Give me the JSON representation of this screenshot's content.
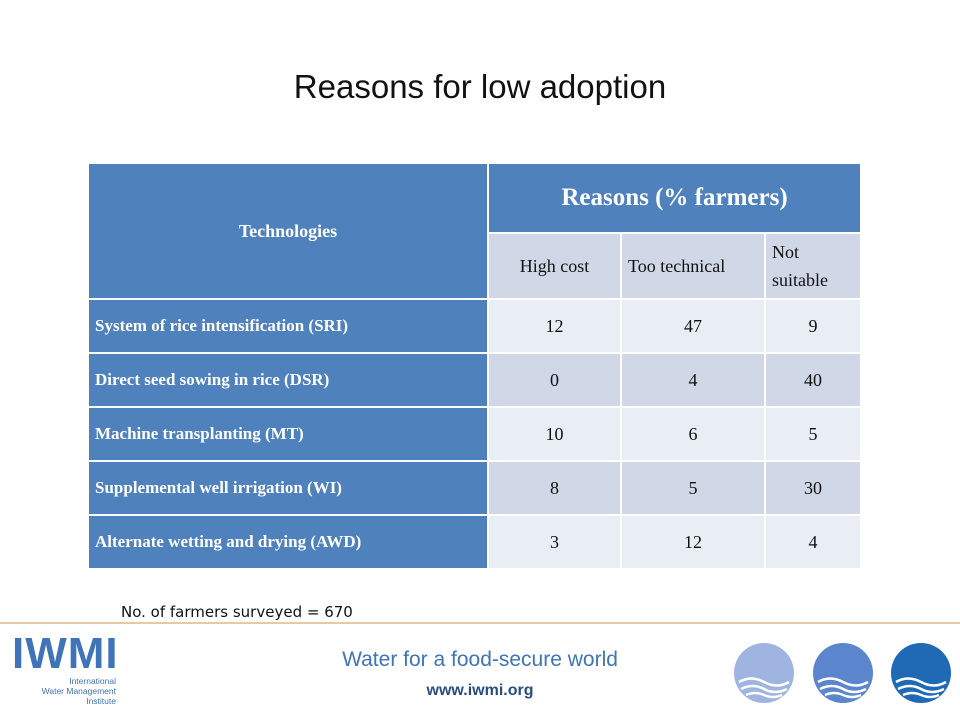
{
  "slide": {
    "title": "Reasons for low adoption"
  },
  "table": {
    "header_technologies": "Technologies",
    "header_reasons": "Reasons (% farmers)",
    "subheaders": [
      "High cost",
      "Too technical",
      "Not suitable"
    ],
    "rows": [
      {
        "technology": "System of rice intensification (SRI)",
        "values": [
          "12",
          "47",
          "9"
        ]
      },
      {
        "technology": "Direct seed sowing in rice (DSR)",
        "values": [
          "0",
          "4",
          "40"
        ]
      },
      {
        "technology": "Machine transplanting (MT)",
        "values": [
          "10",
          "6",
          "5"
        ]
      },
      {
        "technology": "Supplemental well irrigation (WI)",
        "values": [
          "8",
          "5",
          "30"
        ]
      },
      {
        "technology": "Alternate wetting and drying (AWD)",
        "values": [
          "3",
          "12",
          "4"
        ]
      }
    ]
  },
  "note": "No. of farmers surveyed = 670",
  "footer": {
    "logo_text": "IWMI",
    "logo_lines": [
      "International",
      "Water Management",
      "Institute"
    ],
    "tagline": "Water for a food-secure world",
    "url": "www.iwmi.org",
    "globe_colors": [
      "#9fb4e0",
      "#5b85cc",
      "#1f69b5"
    ]
  }
}
